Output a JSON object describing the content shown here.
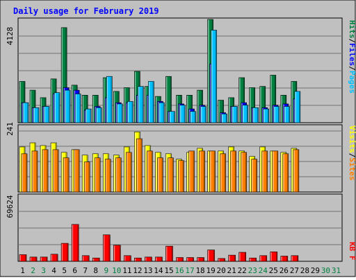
{
  "title": "Daily usage for February 2019",
  "colors": {
    "background": "#c0c0c0",
    "frame": "#000000",
    "title": "#0000ff",
    "hits": "#008040",
    "files": "#0000ff",
    "pages": "#00c0ff",
    "visits": "#ffff00",
    "sites": "#ff8000",
    "kbytes": "#ff0000",
    "weekend_day_label": "#008040"
  },
  "chart_data": [
    {
      "type": "bar",
      "panel": "hits-files-pages",
      "grid": true,
      "ymax_label": "4128",
      "ylim": [
        0,
        4128
      ],
      "legend": {
        "placement": "right",
        "entries": [
          "Pages",
          "Files",
          "Hits"
        ],
        "separator": "/"
      },
      "categories": [
        "1",
        "2",
        "3",
        "4",
        "5",
        "6",
        "7",
        "8",
        "9",
        "10",
        "11",
        "12",
        "13",
        "14",
        "15",
        "16",
        "17",
        "18",
        "19",
        "20",
        "21",
        "22",
        "23",
        "24",
        "25",
        "26",
        "27",
        "28",
        "29",
        "30",
        "31"
      ],
      "series": [
        {
          "name": "Hits",
          "color": "#008040",
          "values": [
            1650,
            1300,
            1000,
            1750,
            3800,
            1500,
            1100,
            1100,
            1800,
            1250,
            1400,
            2050,
            1450,
            1050,
            1850,
            1100,
            1100,
            1300,
            4128,
            900,
            1000,
            1800,
            1400,
            1450,
            1900,
            1100,
            1650,
            null,
            null,
            null,
            null
          ]
        },
        {
          "name": "Files",
          "color": "#0000ff",
          "values": [
            800,
            600,
            650,
            1150,
            1400,
            1300,
            500,
            650,
            1000,
            800,
            800,
            1100,
            1100,
            850,
            450,
            750,
            550,
            700,
            2350,
            400,
            650,
            800,
            600,
            600,
            700,
            750,
            950,
            null,
            null,
            null,
            null
          ]
        },
        {
          "name": "Pages",
          "color": "#00c0ff",
          "values": [
            800,
            600,
            650,
            1200,
            1300,
            1150,
            550,
            600,
            1850,
            750,
            850,
            1450,
            1650,
            800,
            450,
            700,
            450,
            650,
            3700,
            350,
            650,
            700,
            600,
            550,
            650,
            650,
            1250,
            null,
            null,
            null,
            null
          ]
        }
      ]
    },
    {
      "type": "bar",
      "panel": "visits-sites",
      "grid": true,
      "ymax_label": "241",
      "ylim": [
        0,
        241
      ],
      "legend": {
        "placement": "right",
        "entries": [
          "Sites",
          "Visits"
        ],
        "separator": "/"
      },
      "categories": [
        "1",
        "2",
        "3",
        "4",
        "5",
        "6",
        "7",
        "8",
        "9",
        "10",
        "11",
        "12",
        "13",
        "14",
        "15",
        "16",
        "17",
        "18",
        "19",
        "20",
        "21",
        "22",
        "23",
        "24",
        "25",
        "26",
        "27",
        "28",
        "29",
        "30",
        "31"
      ],
      "series": [
        {
          "name": "Visits",
          "color": "#ffff00",
          "values": [
            165,
            180,
            170,
            180,
            145,
            155,
            135,
            140,
            140,
            135,
            165,
            220,
            170,
            145,
            140,
            120,
            145,
            160,
            150,
            150,
            165,
            150,
            130,
            165,
            150,
            145,
            160,
            null,
            null,
            null,
            null
          ]
        },
        {
          "name": "Sites",
          "color": "#ff8000",
          "values": [
            140,
            150,
            155,
            155,
            125,
            155,
            110,
            125,
            120,
            125,
            145,
            195,
            150,
            125,
            125,
            115,
            150,
            150,
            150,
            140,
            150,
            145,
            120,
            150,
            150,
            140,
            155,
            null,
            null,
            null,
            null
          ]
        }
      ]
    },
    {
      "type": "bar",
      "panel": "kbytes",
      "grid": true,
      "ymax_label": "69624",
      "ylim": [
        0,
        69624
      ],
      "legend": {
        "placement": "right",
        "entries": [
          "KB F"
        ],
        "separator": ""
      },
      "categories": [
        "1",
        "2",
        "3",
        "4",
        "5",
        "6",
        "7",
        "8",
        "9",
        "10",
        "11",
        "12",
        "13",
        "14",
        "15",
        "16",
        "17",
        "18",
        "19",
        "20",
        "21",
        "22",
        "23",
        "24",
        "25",
        "26",
        "27",
        "28",
        "29",
        "30",
        "31"
      ],
      "series": [
        {
          "name": "KB F",
          "color": "#ff0000",
          "values": [
            7000,
            4500,
            4500,
            7500,
            19000,
            39000,
            6000,
            3500,
            28000,
            17000,
            6000,
            3500,
            4500,
            4500,
            16000,
            4000,
            4000,
            4000,
            12000,
            3000,
            6500,
            9500,
            3500,
            6000,
            10000,
            5500,
            6000,
            null,
            null,
            null,
            null
          ]
        }
      ]
    }
  ]
}
